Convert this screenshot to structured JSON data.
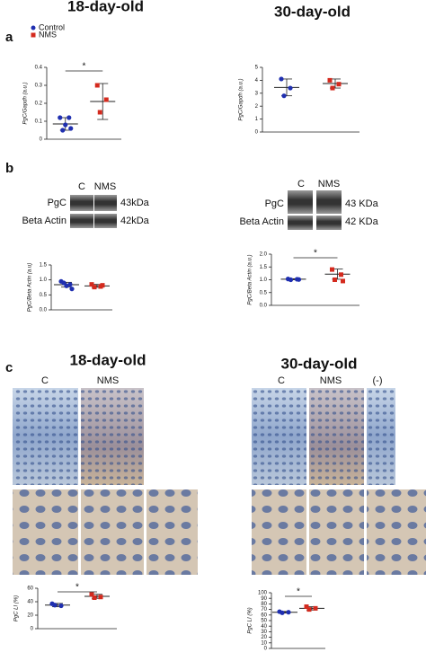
{
  "headings": {
    "a_left": "18-day-old",
    "a_right": "30-day-old",
    "c_left": "18-day-old",
    "c_right": "30-day-old"
  },
  "panel_labels": [
    "a",
    "b",
    "c"
  ],
  "legend": [
    {
      "name": "Control",
      "color": "#1f2fb0"
    },
    {
      "name": "NMS",
      "color": "#d42a1e"
    }
  ],
  "blots": [
    {
      "columns": [
        "C",
        "NMS"
      ],
      "rows": [
        {
          "label": "PgC",
          "size": "43kDa"
        },
        {
          "label": "Beta Actin",
          "size": "42kDa"
        }
      ]
    },
    {
      "columns": [
        "C",
        "NMS"
      ],
      "rows": [
        {
          "label": "PgC",
          "size": "43 KDa"
        },
        {
          "label": "Beta Actin",
          "size": "42 KDa"
        }
      ]
    }
  ],
  "micrographs": [
    {
      "columns": [
        "C",
        "NMS"
      ]
    },
    {
      "columns": [
        "C",
        "NMS",
        "(-)"
      ]
    }
  ],
  "chart_data": [
    {
      "type": "dot",
      "ylabel": "PgC/Gapdh (a.u.)",
      "ylim": [
        0,
        0.4
      ],
      "yticks": [
        0,
        0.1,
        0.2,
        0.3,
        0.4
      ],
      "annotation": "*",
      "groups": [
        {
          "color": "#1f2fb0",
          "values": [
            0.12,
            0.12,
            0.05,
            0.06,
            0.08
          ],
          "mean": 0.085,
          "sd": 0.035
        },
        {
          "color": "#d42a1e",
          "values": [
            0.3,
            0.22,
            0.15
          ],
          "mean": 0.21,
          "sd": 0.1
        }
      ]
    },
    {
      "type": "dot",
      "ylabel": "PgC/Gapdh (a.u.)",
      "ylim": [
        0,
        5
      ],
      "yticks": [
        0,
        1,
        2,
        3,
        4,
        5
      ],
      "groups": [
        {
          "color": "#1f2fb0",
          "values": [
            4.1,
            3.4,
            2.8
          ],
          "mean": 3.45,
          "sd": 0.65
        },
        {
          "color": "#d42a1e",
          "values": [
            4.0,
            3.7,
            3.4
          ],
          "mean": 3.75,
          "sd": 0.35
        }
      ]
    },
    {
      "type": "dot",
      "ylabel": "PgC/Beta Actin (a.u)",
      "ylim": [
        0,
        1.5
      ],
      "yticks": [
        {
          "value": 0,
          "label": "0.0"
        },
        0.5,
        {
          "value": 1,
          "label": "1.0"
        },
        1.5
      ],
      "groups": [
        {
          "color": "#1f2fb0",
          "values": [
            0.95,
            0.85,
            0.9,
            0.7,
            0.8
          ],
          "mean": 0.84,
          "sd": 0.08
        },
        {
          "color": "#d42a1e",
          "values": [
            0.85,
            0.78,
            0.76,
            0.82
          ],
          "mean": 0.8,
          "sd": 0.05
        }
      ]
    },
    {
      "type": "dot",
      "ylabel": "PgC/Beta Actin (a.u.)",
      "ylim": [
        0,
        2
      ],
      "yticks": [
        {
          "value": 0,
          "label": "0.0"
        },
        0.5,
        {
          "value": 1,
          "label": "1.0"
        },
        1.5,
        {
          "value": 2,
          "label": "2.0"
        }
      ],
      "annotation": "*",
      "groups": [
        {
          "color": "#1f2fb0",
          "values": [
            1.03,
            1.02,
            1.0,
            1.01
          ],
          "mean": 1.02,
          "sd": 0.02
        },
        {
          "color": "#d42a1e",
          "values": [
            1.4,
            1.2,
            1.0,
            0.95
          ],
          "mean": 1.22,
          "sd": 0.2
        }
      ]
    },
    {
      "type": "dot",
      "ylabel": "PgC LI (%)",
      "ylim": [
        0,
        60
      ],
      "yticks": [
        0,
        20,
        40,
        60
      ],
      "annotation": "*",
      "groups": [
        {
          "color": "#1f2fb0",
          "values": [
            37,
            34,
            35
          ],
          "mean": 35,
          "sd": 2.5
        },
        {
          "color": "#d42a1e",
          "values": [
            51,
            47,
            46
          ],
          "mean": 48,
          "sd": 3
        }
      ]
    },
    {
      "type": "dot",
      "ylabel": "PgC LI (%)",
      "ylim": [
        0,
        100
      ],
      "yticks": [
        0,
        10,
        20,
        30,
        40,
        50,
        60,
        70,
        80,
        90,
        100
      ],
      "annotation": "*",
      "groups": [
        {
          "color": "#1f2fb0",
          "values": [
            66,
            65,
            64
          ],
          "mean": 65,
          "sd": 1.5
        },
        {
          "color": "#d42a1e",
          "values": [
            75,
            72,
            70
          ],
          "mean": 72,
          "sd": 3
        }
      ]
    }
  ]
}
